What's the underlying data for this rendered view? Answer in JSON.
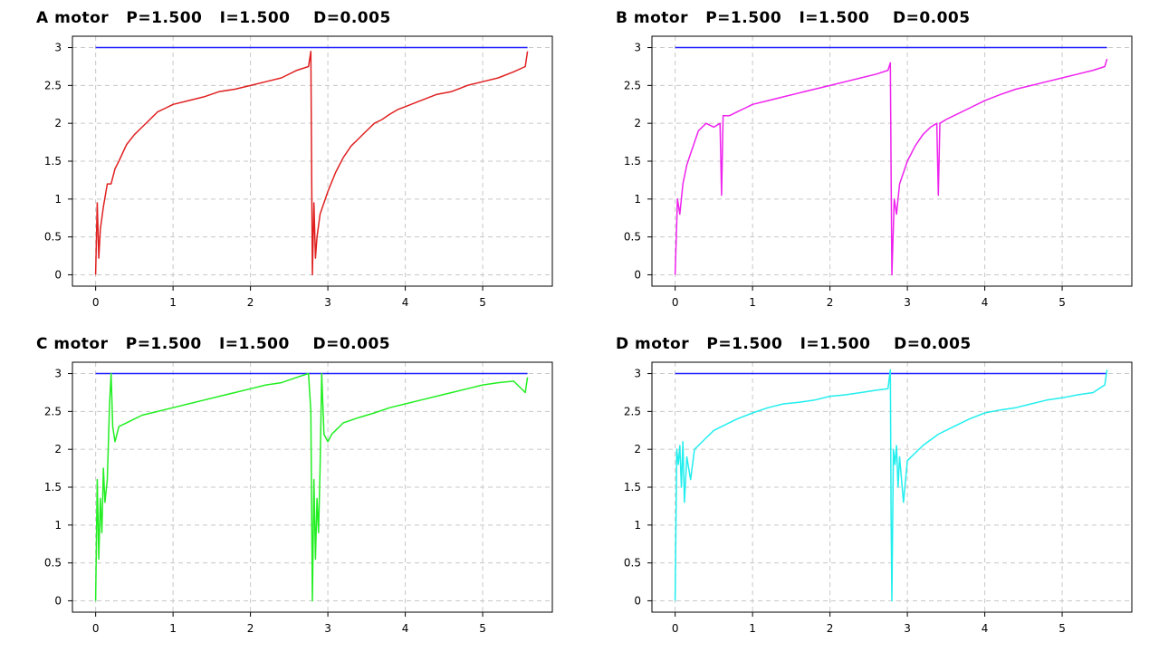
{
  "chart_data": [
    {
      "type": "line",
      "title": "A motor   P=1.500   I=1.500    D=0.005",
      "motor": "A",
      "xlim": [
        -0.3,
        5.9
      ],
      "ylim": [
        -0.15,
        3.15
      ],
      "xticks": [
        0,
        1,
        2,
        3,
        4,
        5
      ],
      "yticks": [
        0,
        0.5,
        1,
        1.5,
        2,
        2.5,
        3
      ],
      "xtick_labels": [
        "0",
        "1",
        "2",
        "3",
        "4",
        "5"
      ],
      "ytick_labels": [
        "0",
        "0.5",
        "1",
        "1.5",
        "2",
        "2.5",
        "3"
      ],
      "grid": true,
      "series": [
        {
          "role": "target",
          "color": "#1f1fff",
          "x": [
            0,
            5.58
          ],
          "y": [
            3,
            3
          ]
        },
        {
          "role": "response",
          "color": "#e02020",
          "x": [
            0,
            0.02,
            0.04,
            0.06,
            0.1,
            0.15,
            0.2,
            0.25,
            0.3,
            0.4,
            0.5,
            0.6,
            0.7,
            0.8,
            0.9,
            1.0,
            1.2,
            1.4,
            1.6,
            1.8,
            2.0,
            2.2,
            2.4,
            2.6,
            2.75,
            2.78,
            2.79,
            2.8,
            2.82,
            2.84,
            2.86,
            2.9,
            3.0,
            3.1,
            3.2,
            3.3,
            3.4,
            3.5,
            3.6,
            3.7,
            3.8,
            3.9,
            4.0,
            4.2,
            4.4,
            4.6,
            4.8,
            5.0,
            5.2,
            5.4,
            5.55,
            5.58
          ],
          "y": [
            0,
            0.95,
            0.22,
            0.6,
            0.9,
            1.2,
            1.2,
            1.4,
            1.5,
            1.72,
            1.85,
            1.95,
            2.05,
            2.15,
            2.2,
            2.25,
            2.3,
            2.35,
            2.42,
            2.45,
            2.5,
            2.55,
            2.6,
            2.7,
            2.75,
            2.95,
            1.5,
            0,
            0.95,
            0.22,
            0.5,
            0.8,
            1.1,
            1.35,
            1.55,
            1.7,
            1.8,
            1.9,
            2.0,
            2.05,
            2.12,
            2.18,
            2.22,
            2.3,
            2.38,
            2.42,
            2.5,
            2.55,
            2.6,
            2.68,
            2.75,
            2.95
          ]
        }
      ]
    },
    {
      "type": "line",
      "title": "B motor   P=1.500   I=1.500    D=0.005",
      "motor": "B",
      "xlim": [
        -0.3,
        5.9
      ],
      "ylim": [
        -0.15,
        3.15
      ],
      "xticks": [
        0,
        1,
        2,
        3,
        4,
        5
      ],
      "yticks": [
        0,
        0.5,
        1,
        1.5,
        2,
        2.5,
        3
      ],
      "xtick_labels": [
        "0",
        "1",
        "2",
        "3",
        "4",
        "5"
      ],
      "ytick_labels": [
        "0",
        "0.5",
        "1",
        "1.5",
        "2",
        "2.5",
        "3"
      ],
      "grid": true,
      "series": [
        {
          "role": "target",
          "color": "#1f1fff",
          "x": [
            0,
            5.58
          ],
          "y": [
            3,
            3
          ]
        },
        {
          "role": "response",
          "color": "#ee22ee",
          "x": [
            0,
            0.03,
            0.06,
            0.1,
            0.15,
            0.2,
            0.25,
            0.3,
            0.4,
            0.5,
            0.58,
            0.6,
            0.62,
            0.7,
            0.8,
            0.9,
            1.0,
            1.2,
            1.4,
            1.6,
            1.8,
            2.0,
            2.2,
            2.4,
            2.6,
            2.75,
            2.78,
            2.79,
            2.8,
            2.83,
            2.86,
            2.9,
            3.0,
            3.1,
            3.2,
            3.3,
            3.38,
            3.4,
            3.42,
            3.5,
            3.6,
            3.8,
            4.0,
            4.2,
            4.4,
            4.6,
            4.8,
            5.0,
            5.2,
            5.4,
            5.55,
            5.58
          ],
          "y": [
            0,
            1.0,
            0.8,
            1.2,
            1.45,
            1.6,
            1.75,
            1.9,
            2.0,
            1.95,
            2.0,
            1.05,
            2.1,
            2.1,
            2.15,
            2.2,
            2.25,
            2.3,
            2.35,
            2.4,
            2.45,
            2.5,
            2.55,
            2.6,
            2.65,
            2.7,
            2.8,
            1.4,
            0,
            1.0,
            0.8,
            1.2,
            1.5,
            1.7,
            1.85,
            1.95,
            2.0,
            1.05,
            2.0,
            2.05,
            2.1,
            2.2,
            2.3,
            2.38,
            2.45,
            2.5,
            2.55,
            2.6,
            2.65,
            2.7,
            2.75,
            2.85
          ]
        }
      ]
    },
    {
      "type": "line",
      "title": "C motor   P=1.500   I=1.500    D=0.005",
      "motor": "C",
      "xlim": [
        -0.3,
        5.9
      ],
      "ylim": [
        -0.15,
        3.15
      ],
      "xticks": [
        0,
        1,
        2,
        3,
        4,
        5
      ],
      "yticks": [
        0,
        0.5,
        1,
        1.5,
        2,
        2.5,
        3
      ],
      "xtick_labels": [
        "0",
        "1",
        "2",
        "3",
        "4",
        "5"
      ],
      "ytick_labels": [
        "0",
        "0.5",
        "1",
        "1.5",
        "2",
        "2.5",
        "3"
      ],
      "grid": true,
      "series": [
        {
          "role": "target",
          "color": "#1f1fff",
          "x": [
            0,
            5.58
          ],
          "y": [
            3,
            3
          ]
        },
        {
          "role": "response",
          "color": "#22ee22",
          "x": [
            0,
            0.02,
            0.04,
            0.06,
            0.08,
            0.1,
            0.12,
            0.15,
            0.18,
            0.2,
            0.22,
            0.25,
            0.3,
            0.4,
            0.5,
            0.6,
            0.8,
            1.0,
            1.2,
            1.4,
            1.6,
            1.8,
            2.0,
            2.2,
            2.4,
            2.6,
            2.75,
            2.78,
            2.8,
            2.82,
            2.84,
            2.86,
            2.88,
            2.9,
            2.92,
            2.95,
            3.0,
            3.05,
            3.1,
            3.2,
            3.4,
            3.6,
            3.8,
            4.0,
            4.2,
            4.4,
            4.6,
            4.8,
            5.0,
            5.2,
            5.4,
            5.55,
            5.58
          ],
          "y": [
            0,
            1.6,
            0.55,
            1.35,
            0.9,
            1.75,
            1.3,
            1.6,
            2.6,
            3.0,
            2.3,
            2.1,
            2.3,
            2.35,
            2.4,
            2.45,
            2.5,
            2.55,
            2.6,
            2.65,
            2.7,
            2.75,
            2.8,
            2.85,
            2.88,
            2.95,
            3.0,
            2.5,
            0,
            1.6,
            0.55,
            1.35,
            0.9,
            1.75,
            3.0,
            2.2,
            2.1,
            2.2,
            2.25,
            2.35,
            2.42,
            2.48,
            2.55,
            2.6,
            2.65,
            2.7,
            2.75,
            2.8,
            2.85,
            2.88,
            2.9,
            2.75,
            2.95
          ]
        }
      ]
    },
    {
      "type": "line",
      "title": "D motor   P=1.500   I=1.500    D=0.005",
      "motor": "D",
      "xlim": [
        -0.3,
        5.9
      ],
      "ylim": [
        -0.15,
        3.15
      ],
      "xticks": [
        0,
        1,
        2,
        3,
        4,
        5
      ],
      "yticks": [
        0,
        0.5,
        1,
        1.5,
        2,
        2.5,
        3
      ],
      "xtick_labels": [
        "0",
        "1",
        "2",
        "3",
        "4",
        "5"
      ],
      "ytick_labels": [
        "0",
        "0.5",
        "1",
        "1.5",
        "2",
        "2.5",
        "3"
      ],
      "grid": true,
      "series": [
        {
          "role": "target",
          "color": "#1f1fff",
          "x": [
            0,
            5.58
          ],
          "y": [
            3,
            3
          ]
        },
        {
          "role": "response",
          "color": "#22eeee",
          "x": [
            0,
            0.02,
            0.04,
            0.06,
            0.08,
            0.1,
            0.12,
            0.15,
            0.2,
            0.25,
            0.3,
            0.4,
            0.5,
            0.6,
            0.8,
            1.0,
            1.2,
            1.4,
            1.6,
            1.8,
            2.0,
            2.2,
            2.4,
            2.6,
            2.75,
            2.78,
            2.79,
            2.8,
            2.82,
            2.84,
            2.86,
            2.88,
            2.9,
            2.95,
            3.0,
            3.1,
            3.2,
            3.4,
            3.6,
            3.8,
            4.0,
            4.2,
            4.4,
            4.6,
            4.8,
            5.0,
            5.2,
            5.4,
            5.55,
            5.58
          ],
          "y": [
            0,
            2.0,
            1.8,
            2.05,
            1.5,
            2.1,
            1.3,
            1.9,
            1.6,
            2.0,
            2.05,
            2.15,
            2.25,
            2.3,
            2.4,
            2.48,
            2.55,
            2.6,
            2.62,
            2.65,
            2.7,
            2.72,
            2.75,
            2.78,
            2.8,
            3.05,
            1.2,
            0,
            2.0,
            1.8,
            2.05,
            1.5,
            1.9,
            1.3,
            1.85,
            1.95,
            2.05,
            2.2,
            2.3,
            2.4,
            2.48,
            2.52,
            2.55,
            2.6,
            2.65,
            2.68,
            2.72,
            2.75,
            2.85,
            3.05
          ]
        }
      ]
    }
  ]
}
